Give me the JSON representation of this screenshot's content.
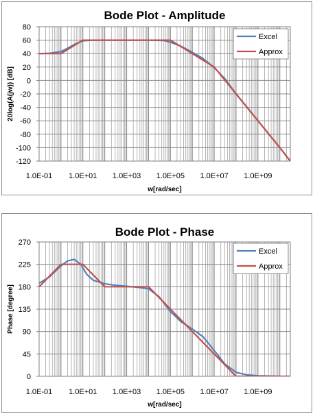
{
  "chart_data": [
    {
      "type": "line",
      "title": "Bode Plot - Amplitude",
      "xlabel": "w[rad/sec]",
      "ylabel": "20log(A(jw)) [dB]",
      "xscale": "log",
      "xlim": [
        0.1,
        30000000000
      ],
      "ylim": [
        -120,
        80
      ],
      "yticks": [
        80,
        60,
        40,
        20,
        0,
        -20,
        -40,
        -60,
        -80,
        -100,
        -120
      ],
      "xtick_labels": [
        "1.0E-01",
        "1.0E+01",
        "1.0E+03",
        "1.0E+05",
        "1.0E+07",
        "1.0E+09"
      ],
      "grid": true,
      "legend": "top-right",
      "series": [
        {
          "name": "Excel",
          "color": "#4f81bd",
          "x": [
            0.1,
            0.3,
            1,
            2,
            5,
            10,
            30,
            100,
            1000,
            10000,
            50000,
            100000,
            300000,
            1000000,
            3000000,
            10000000,
            30000000,
            100000000,
            1000000000,
            10000000000,
            30000000000
          ],
          "y": [
            40,
            40.5,
            43,
            48,
            55,
            59,
            60,
            60,
            60,
            60,
            59.5,
            57,
            51,
            42,
            33,
            19,
            3,
            -20,
            -60,
            -100,
            -120
          ]
        },
        {
          "name": "Approx",
          "color": "#c0504d",
          "x": [
            0.1,
            1,
            10,
            100000,
            10000000,
            100000000,
            1000000000,
            10000000000,
            30000000000
          ],
          "y": [
            40,
            40,
            60,
            60,
            20,
            -20,
            -60,
            -100,
            -120
          ]
        }
      ]
    },
    {
      "type": "line",
      "title": "Bode Plot - Phase",
      "xlabel": "w[rad/sec]",
      "ylabel": "Phase [degree]",
      "xscale": "log",
      "xlim": [
        0.1,
        30000000000
      ],
      "ylim": [
        0,
        270
      ],
      "yticks": [
        270,
        225,
        180,
        135,
        90,
        45,
        0
      ],
      "xtick_labels": [
        "1.0E-01",
        "1.0E+01",
        "1.0E+03",
        "1.0E+05",
        "1.0E+07",
        "1.0E+09"
      ],
      "grid": true,
      "legend": "top-right",
      "series": [
        {
          "name": "Excel",
          "color": "#4f81bd",
          "x": [
            0.1,
            0.3,
            1,
            2,
            4,
            8,
            15,
            30,
            100,
            300,
            1000,
            3000,
            10000,
            30000,
            100000,
            300000,
            1000000,
            3000000,
            10000000,
            30000000,
            100000000,
            300000000,
            1000000000,
            10000000000
          ],
          "y": [
            187,
            200,
            222,
            232,
            235,
            225,
            205,
            193,
            186,
            183,
            181,
            179,
            176,
            160,
            130,
            110,
            95,
            80,
            52,
            25,
            8,
            3,
            1,
            0
          ]
        },
        {
          "name": "Approx",
          "color": "#c0504d",
          "x": [
            0.1,
            1,
            10,
            100,
            10000,
            10000000,
            100000000,
            30000000000
          ],
          "y": [
            180,
            225,
            225,
            180,
            180,
            45,
            0,
            0
          ]
        }
      ]
    }
  ]
}
